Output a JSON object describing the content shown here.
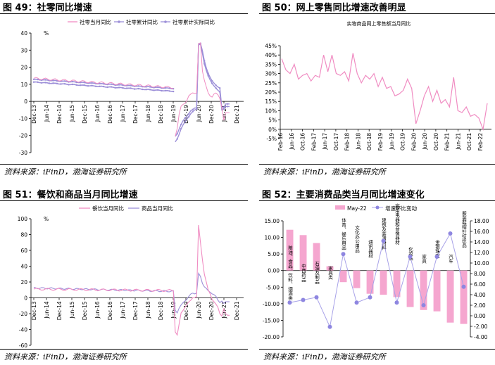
{
  "panels": [
    {
      "title": "图 49：社零同比增速",
      "source": "资料来源：iFinD，渤海证券研究所"
    },
    {
      "title": "图 50：网上零售同比增速改善明显",
      "source": "资料来源：iFinD，渤海证券研究所"
    },
    {
      "title": "图 51：餐饮和商品当月同比增速",
      "source": "资料来源：iFinD，渤海证券研究所"
    },
    {
      "title": "图 52：主要消费品类当月同比增速变化",
      "source": "资料来源：iFinD，渤海证券研究所"
    }
  ],
  "colors": {
    "pink": "#F08CC2",
    "violet": "#9C8FD8",
    "bar": "#F5A6CF",
    "dot": "#8E86E0",
    "dotline": "#A8A2E8"
  },
  "chart_data": [
    {
      "type": "line",
      "yunit": "%",
      "ylim": [
        -30,
        40
      ],
      "yticks": [
        -30,
        -20,
        -10,
        0,
        10,
        20,
        30,
        40
      ],
      "xticks": [
        "Dec-13",
        "Jun-14",
        "Dec-14",
        "Jun-15",
        "Dec-15",
        "Jun-16",
        "Dec-16",
        "Jun-17",
        "Dec-17",
        "Jun-18",
        "Dec-18",
        "Jun-19",
        "Dec-19",
        "Jun-20",
        "Dec-20",
        "Jun-21",
        "Dec-21"
      ],
      "series": [
        {
          "name": "社零当月同比",
          "color": "pink"
        },
        {
          "name": "社零累计同比",
          "color": "violet"
        },
        {
          "name": "社零累计实际同比",
          "color": "violet"
        }
      ]
    },
    {
      "type": "line",
      "title": "实物商品网上零售额当月同比",
      "ylim": [
        -5,
        45
      ],
      "yticks": [
        "-5%",
        "0%",
        "5%",
        "10%",
        "15%",
        "20%",
        "25%",
        "30%",
        "35%",
        "40%",
        "45%"
      ],
      "xticks": [
        "Feb-16",
        "Jun-16",
        "Oct-16",
        "Feb-17",
        "Jun-17",
        "Oct-17",
        "Feb-18",
        "Jun-18",
        "Oct-18",
        "Feb-19",
        "Jun-19",
        "Oct-19",
        "Feb-20",
        "Jun-20",
        "Oct-20",
        "Feb-21",
        "Jun-21",
        "Oct-21",
        "Feb-22"
      ],
      "values": [
        38,
        32,
        30,
        35,
        27,
        29,
        30,
        26,
        29,
        28,
        40,
        31,
        40,
        30,
        29,
        31,
        26,
        41,
        30,
        25,
        29,
        27,
        30,
        23,
        28,
        22,
        23,
        18,
        19,
        21,
        27,
        22,
        3,
        10,
        18,
        23,
        15,
        21,
        14,
        16,
        12,
        28,
        10,
        9,
        12,
        7,
        8,
        6,
        0,
        14
      ]
    },
    {
      "type": "line",
      "yunit": "%",
      "ylim": [
        -60,
        100
      ],
      "yticks": [
        -60,
        -40,
        -20,
        0,
        20,
        40,
        60,
        80,
        100
      ],
      "xticks": [
        "Dec-13",
        "Jun-14",
        "Dec-14",
        "Jun-15",
        "Dec-15",
        "Jun-16",
        "Dec-16",
        "Jun-17",
        "Dec-17",
        "Jun-18",
        "Dec-18",
        "Jun-19",
        "Dec-19",
        "Jun-20",
        "Dec-20",
        "Jun-21",
        "Dec-21"
      ],
      "series": [
        {
          "name": "餐饮当月同比",
          "color": "pink"
        },
        {
          "name": "商品当月同比",
          "color": "violet"
        }
      ]
    },
    {
      "type": "bar",
      "categories": [
        "粮油、食品、饮料、烟酒类",
        "中西药品",
        "石油及制品",
        "家具类",
        "体育、娱乐用品",
        "文化办公用品",
        "通讯器材",
        "建筑及装潢材料",
        "家用电器和音像器材",
        "化妆品",
        "家具",
        "金银珠宝",
        "汽车",
        "服装鞋帽针纺织品"
      ],
      "series": [
        {
          "name": "May-22",
          "values": [
            12.3,
            10.7,
            8.3,
            1.3,
            -3.5,
            -5.3,
            -7.0,
            -7.3,
            -8.0,
            -11.0,
            -11.9,
            -12.3,
            -15.7,
            -16.1
          ]
        },
        {
          "name": "增速环比变动",
          "values": [
            2.5,
            3.0,
            3.5,
            -2.1,
            11.7,
            2.5,
            3.5,
            14.2,
            2.5,
            11.2,
            2.0,
            11.2,
            15.6,
            5.5
          ]
        }
      ],
      "ylim": [
        -20,
        15
      ],
      "yticks": [
        "15.00",
        "10.00",
        "5.00",
        "0.00",
        "-5.00",
        "-10.00",
        "-15.00",
        "-20.00"
      ],
      "y2lim": [
        -4,
        18
      ],
      "y2ticks": [
        "18.00",
        "16.00",
        "14.00",
        "12.00",
        "10.00",
        "8.00",
        "6.00",
        "4.00",
        "2.00",
        "0.00",
        "-2.00",
        "-4.00"
      ]
    }
  ]
}
